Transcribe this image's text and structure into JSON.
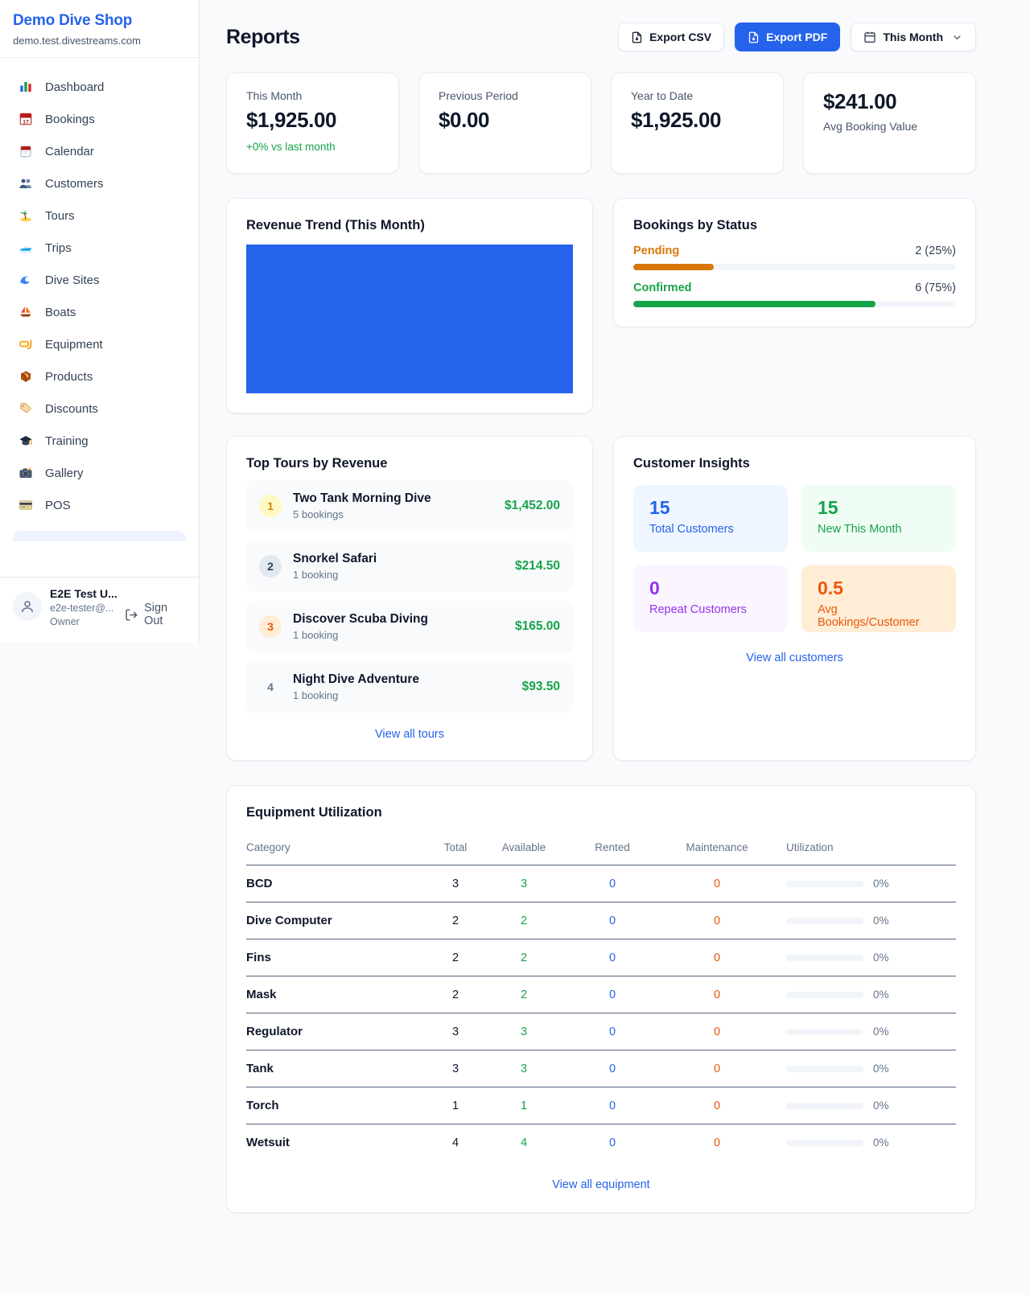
{
  "colors": {
    "accent": "#2563eb",
    "success": "#16a34a",
    "warning": "#d97706",
    "orange": "#ea580c",
    "purple": "#9333ea"
  },
  "sidebar": {
    "brand": {
      "name": "Demo Dive Shop",
      "domain": "demo.test.divestreams.com"
    },
    "nav": [
      {
        "icon": "bar-chart-icon",
        "label": "Dashboard"
      },
      {
        "icon": "bookings-calendar-icon",
        "label": "Bookings"
      },
      {
        "icon": "tear-off-calendar-icon",
        "label": "Calendar"
      },
      {
        "icon": "people-icon",
        "label": "Customers"
      },
      {
        "icon": "island-icon",
        "label": "Tours"
      },
      {
        "icon": "speedboat-icon",
        "label": "Trips"
      },
      {
        "icon": "wave-icon",
        "label": "Dive Sites"
      },
      {
        "icon": "sailboat-icon",
        "label": "Boats"
      },
      {
        "icon": "dive-mask-icon",
        "label": "Equipment"
      },
      {
        "icon": "package-icon",
        "label": "Products"
      },
      {
        "icon": "tag-icon",
        "label": "Discounts"
      },
      {
        "icon": "graduation-cap-icon",
        "label": "Training"
      },
      {
        "icon": "camera-icon",
        "label": "Gallery"
      },
      {
        "icon": "credit-card-icon",
        "label": "POS"
      }
    ],
    "user": {
      "name": "E2E Test U...",
      "email": "e2e-tester@...",
      "role": "Owner",
      "sign_out_label": "Sign Out"
    }
  },
  "header": {
    "title": "Reports",
    "export_csv_label": "Export CSV",
    "export_pdf_label": "Export PDF",
    "period_label": "This Month"
  },
  "stats": [
    {
      "label": "This Month",
      "value": "$1,925.00",
      "delta": "+0% vs last month"
    },
    {
      "label": "Previous Period",
      "value": "$0.00"
    },
    {
      "label": "Year to Date",
      "value": "$1,925.00"
    },
    {
      "label": "Avg Booking Value",
      "value": "$241.00"
    }
  ],
  "revenue_trend": {
    "title": "Revenue Trend (This Month)"
  },
  "bookings_by_status": {
    "title": "Bookings by Status",
    "rows": [
      {
        "label": "Pending",
        "count": "2 (25%)",
        "percent": 25
      },
      {
        "label": "Confirmed",
        "count": "6 (75%)",
        "percent": 75
      }
    ]
  },
  "top_tours": {
    "title": "Top Tours by Revenue",
    "items": [
      {
        "rank": "1",
        "name": "Two Tank Morning Dive",
        "bookings": "5 bookings",
        "amount": "$1,452.00"
      },
      {
        "rank": "2",
        "name": "Snorkel Safari",
        "bookings": "1 booking",
        "amount": "$214.50"
      },
      {
        "rank": "3",
        "name": "Discover Scuba Diving",
        "bookings": "1 booking",
        "amount": "$165.00"
      },
      {
        "rank": "4",
        "name": "Night Dive Adventure",
        "bookings": "1 booking",
        "amount": "$93.50"
      }
    ],
    "view_all": "View all tours"
  },
  "customer_insights": {
    "title": "Customer Insights",
    "tiles": [
      {
        "value": "15",
        "label": "Total Customers"
      },
      {
        "value": "15",
        "label": "New This Month"
      },
      {
        "value": "0",
        "label": "Repeat Customers"
      },
      {
        "value": "0.5",
        "label": "Avg Bookings/Customer"
      }
    ],
    "view_all": "View all customers"
  },
  "equipment": {
    "title": "Equipment Utilization",
    "columns": [
      "Category",
      "Total",
      "Available",
      "Rented",
      "Maintenance",
      "Utilization"
    ],
    "rows": [
      {
        "category": "BCD",
        "total": "3",
        "available": "3",
        "rented": "0",
        "maintenance": "0",
        "utilization": "0%"
      },
      {
        "category": "Dive Computer",
        "total": "2",
        "available": "2",
        "rented": "0",
        "maintenance": "0",
        "utilization": "0%"
      },
      {
        "category": "Fins",
        "total": "2",
        "available": "2",
        "rented": "0",
        "maintenance": "0",
        "utilization": "0%"
      },
      {
        "category": "Mask",
        "total": "2",
        "available": "2",
        "rented": "0",
        "maintenance": "0",
        "utilization": "0%"
      },
      {
        "category": "Regulator",
        "total": "3",
        "available": "3",
        "rented": "0",
        "maintenance": "0",
        "utilization": "0%"
      },
      {
        "category": "Tank",
        "total": "3",
        "available": "3",
        "rented": "0",
        "maintenance": "0",
        "utilization": "0%"
      },
      {
        "category": "Torch",
        "total": "1",
        "available": "1",
        "rented": "0",
        "maintenance": "0",
        "utilization": "0%"
      },
      {
        "category": "Wetsuit",
        "total": "4",
        "available": "4",
        "rented": "0",
        "maintenance": "0",
        "utilization": "0%"
      }
    ],
    "view_all": "View all equipment"
  }
}
